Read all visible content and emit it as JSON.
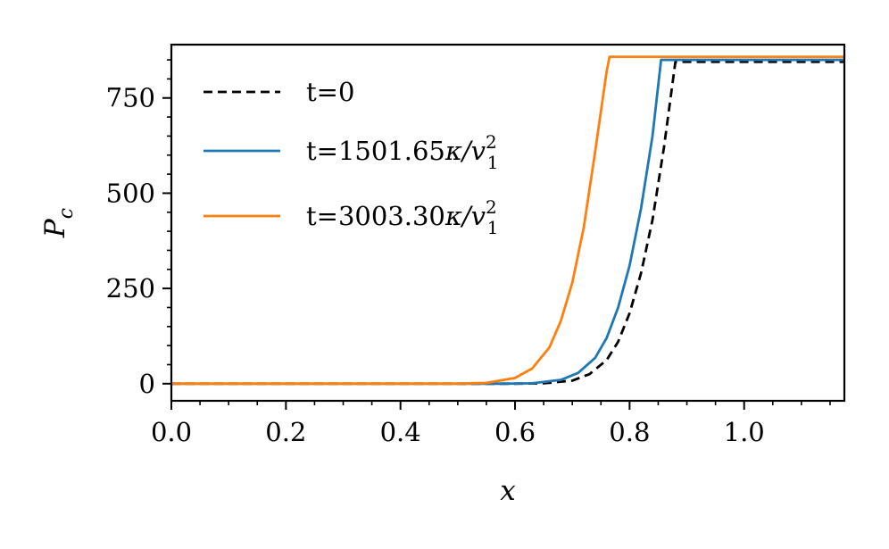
{
  "chart_data": {
    "type": "line",
    "xlabel": "x",
    "ylabel": "P_c",
    "xlim": [
      0.0,
      1.175
    ],
    "ylim": [
      -45,
      890
    ],
    "xticks": [
      {
        "v": 0.0,
        "label": "0.0"
      },
      {
        "v": 0.2,
        "label": "0.2"
      },
      {
        "v": 0.4,
        "label": "0.4"
      },
      {
        "v": 0.6,
        "label": "0.6"
      },
      {
        "v": 0.8,
        "label": "0.8"
      },
      {
        "v": 1.0,
        "label": "1.0"
      }
    ],
    "yticks": [
      {
        "v": 0,
        "label": "0"
      },
      {
        "v": 250,
        "label": "250"
      },
      {
        "v": 500,
        "label": "500"
      },
      {
        "v": 750,
        "label": "750"
      }
    ],
    "legend_position": "upper-left",
    "series": [
      {
        "name": "t=0",
        "name_parts": [
          "t=0"
        ],
        "color": "#000000",
        "dash": "dashed",
        "x": [
          0.0,
          0.6,
          0.65,
          0.7,
          0.73,
          0.76,
          0.78,
          0.8,
          0.82,
          0.84,
          0.86,
          0.88,
          1.175
        ],
        "y": [
          0,
          0,
          1,
          8,
          25,
          62,
          110,
          185,
          290,
          430,
          620,
          845,
          845
        ]
      },
      {
        "name": "t=1501.65κ/v12",
        "name_parts": [
          "t=1501.65",
          "κ/v",
          "2",
          "1"
        ],
        "color": "#1f77b4",
        "dash": "solid",
        "x": [
          0.0,
          0.58,
          0.63,
          0.68,
          0.71,
          0.74,
          0.76,
          0.78,
          0.8,
          0.82,
          0.84,
          0.855,
          1.175
        ],
        "y": [
          0,
          0,
          1,
          10,
          28,
          68,
          120,
          200,
          310,
          460,
          650,
          850,
          850
        ]
      },
      {
        "name": "t=3003.30κ/v12",
        "name_parts": [
          "t=3003.30",
          "κ/v",
          "2",
          "1"
        ],
        "color": "#ff7f0e",
        "dash": "solid",
        "x": [
          0.0,
          0.5,
          0.55,
          0.6,
          0.63,
          0.66,
          0.68,
          0.7,
          0.72,
          0.74,
          0.76,
          0.765,
          1.175
        ],
        "y": [
          0,
          0,
          2,
          15,
          40,
          95,
          165,
          265,
          410,
          610,
          820,
          858,
          858
        ]
      }
    ]
  }
}
